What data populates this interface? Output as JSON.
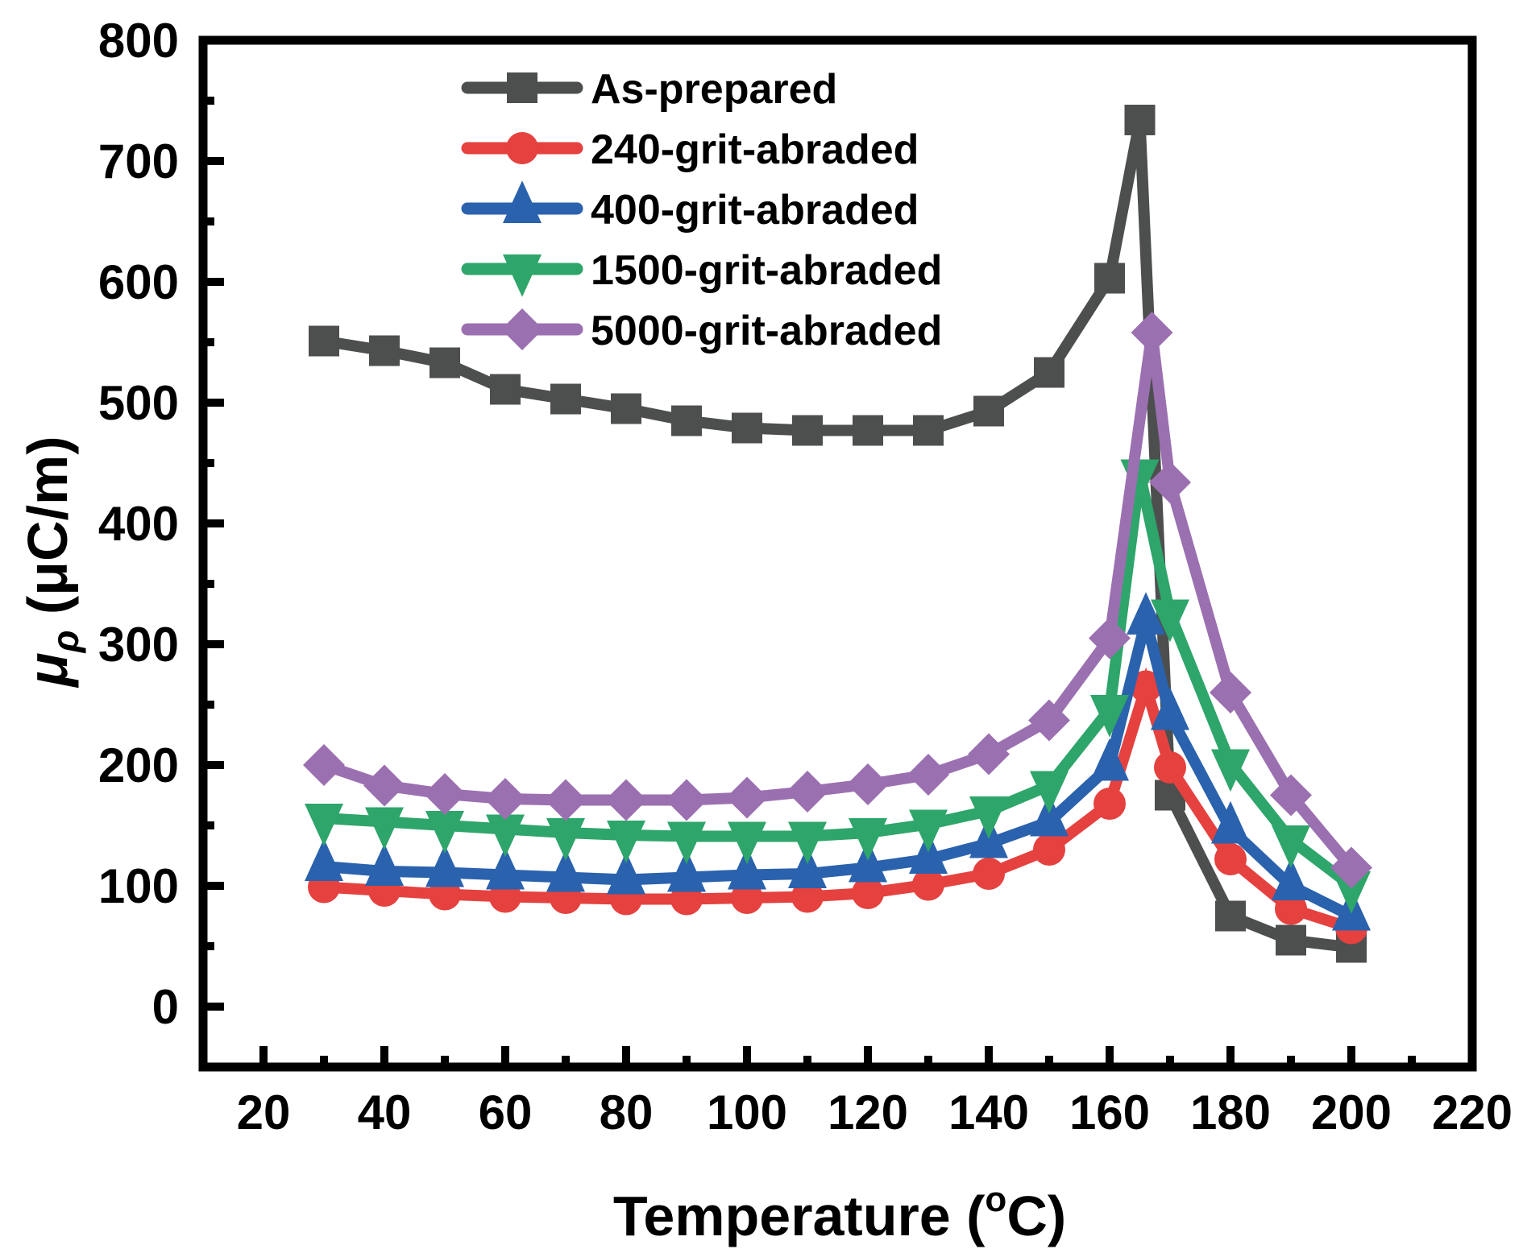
{
  "chart_data": {
    "type": "line",
    "title": "",
    "xlabel": "Temperature (°C)",
    "xlabel_parts": {
      "main": "Temperature (",
      "sup": "o",
      "tail": "C)"
    },
    "ylabel": "μρ (μC/m)",
    "ylabel_parts": {
      "symbol": "μ",
      "subscript": "ρ",
      "unit": " (μC/m)"
    },
    "xlim": [
      10,
      220
    ],
    "ylim": [
      -50,
      800
    ],
    "xticks": [
      20,
      40,
      60,
      80,
      100,
      120,
      140,
      160,
      180,
      200,
      220
    ],
    "xticks_minor": [
      30,
      50,
      70,
      90,
      110,
      130,
      150,
      170,
      190,
      210
    ],
    "yticks": [
      0,
      100,
      200,
      300,
      400,
      500,
      600,
      700,
      800
    ],
    "yticks_minor": [
      50,
      150,
      250,
      350,
      450,
      550,
      650,
      750
    ],
    "grid": false,
    "legend_position": "top-center",
    "series": [
      {
        "name": "As-prepared",
        "color": "#4d4f4f",
        "marker": "square",
        "x": [
          30,
          40,
          50,
          60,
          70,
          80,
          90,
          100,
          110,
          120,
          130,
          140,
          150,
          160,
          165,
          170,
          180,
          190,
          200
        ],
        "y": [
          551,
          543,
          533,
          511,
          503,
          495,
          485,
          479,
          477,
          477,
          477,
          493,
          525,
          603,
          734,
          175,
          75,
          55,
          49
        ]
      },
      {
        "name": "240-grit-abraded",
        "color": "#e5413f",
        "marker": "circle",
        "x": [
          30,
          40,
          50,
          60,
          70,
          80,
          90,
          100,
          110,
          120,
          130,
          140,
          150,
          160,
          166,
          170,
          180,
          190,
          200
        ],
        "y": [
          99,
          96,
          93,
          91,
          90,
          89,
          89,
          90,
          91,
          94,
          101,
          110,
          130,
          168,
          265,
          198,
          122,
          81,
          65
        ]
      },
      {
        "name": "400-grit-abraded",
        "color": "#2a62ad",
        "marker": "triangle-up",
        "x": [
          30,
          40,
          50,
          60,
          70,
          80,
          90,
          100,
          110,
          120,
          130,
          140,
          150,
          160,
          166,
          170,
          180,
          190,
          200
        ],
        "y": [
          116,
          112,
          111,
          109,
          107,
          105,
          107,
          109,
          110,
          115,
          122,
          135,
          153,
          199,
          320,
          241,
          147,
          100,
          75
        ]
      },
      {
        "name": "1500-grit-abraded",
        "color": "#2ea56a",
        "marker": "triangle-down",
        "x": [
          30,
          40,
          50,
          60,
          70,
          80,
          90,
          100,
          110,
          120,
          130,
          140,
          150,
          160,
          165,
          170,
          180,
          190,
          200
        ],
        "y": [
          156,
          153,
          150,
          147,
          144,
          142,
          141,
          141,
          141,
          144,
          151,
          162,
          183,
          246,
          441,
          325,
          201,
          138,
          100
        ]
      },
      {
        "name": "5000-grit-abraded",
        "color": "#9b70b0",
        "marker": "diamond",
        "x": [
          30,
          40,
          50,
          60,
          70,
          80,
          90,
          100,
          110,
          120,
          130,
          140,
          150,
          160,
          167,
          170,
          180,
          190,
          200
        ],
        "y": [
          200,
          183,
          176,
          172,
          171,
          171,
          171,
          173,
          178,
          184,
          192,
          209,
          237,
          305,
          558,
          434,
          260,
          175,
          115
        ]
      }
    ]
  }
}
